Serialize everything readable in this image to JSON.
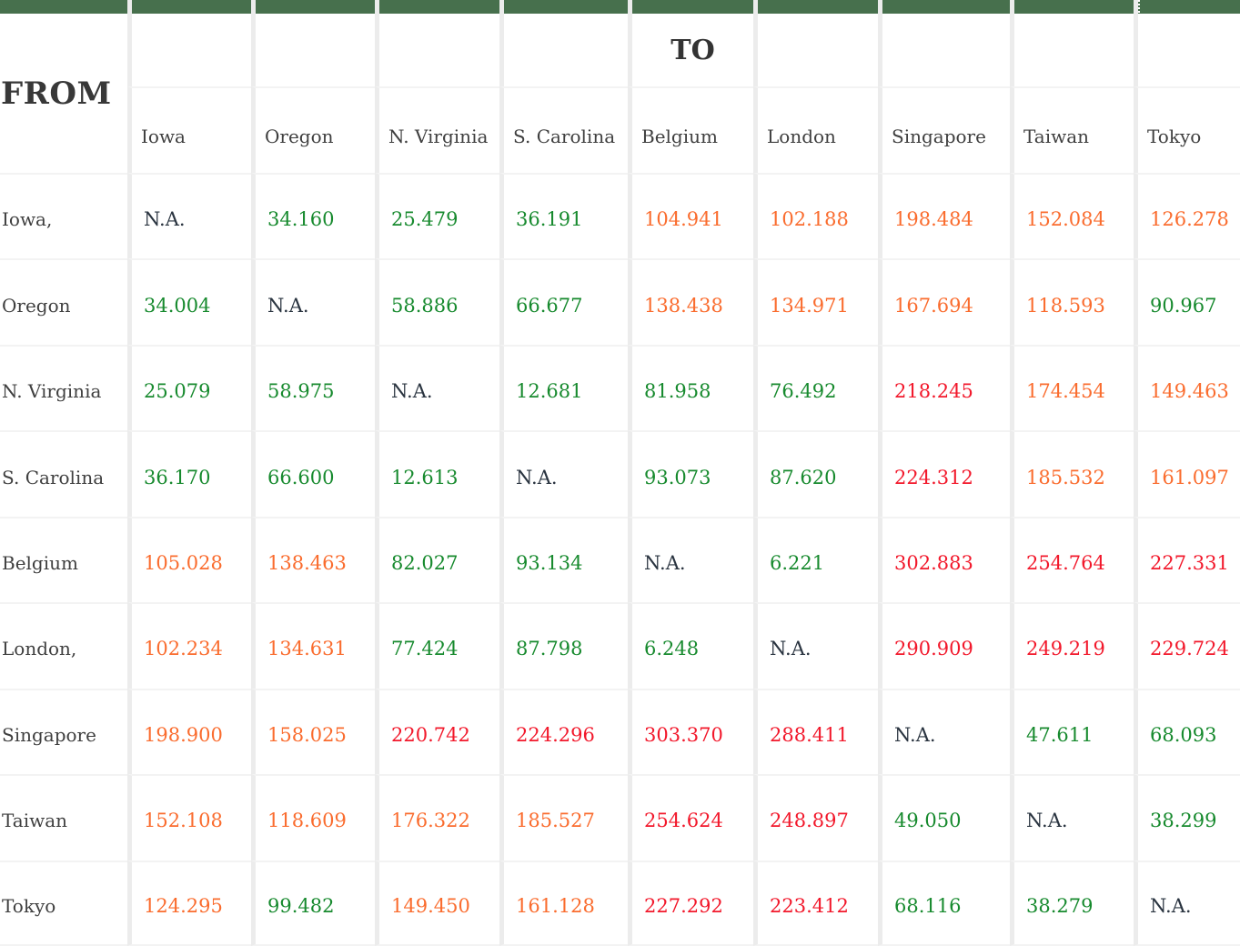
{
  "table": {
    "from_label": "FROM",
    "to_label": "TO",
    "na_label": "N.A.",
    "columns": [
      "Iowa",
      "Oregon",
      "N. Virginia",
      "S. Carolina",
      "Belgium",
      "London",
      "Singapore",
      "Taiwan",
      "Tokyo"
    ],
    "rows": [
      {
        "label": "Iowa,",
        "values": [
          null,
          "34.160",
          "25.479",
          "36.191",
          "104.941",
          "102.188",
          "198.484",
          "152.084",
          "126.278"
        ]
      },
      {
        "label": "Oregon",
        "values": [
          "34.004",
          null,
          "58.886",
          "66.677",
          "138.438",
          "134.971",
          "167.694",
          "118.593",
          "90.967"
        ]
      },
      {
        "label": "N. Virginia",
        "values": [
          "25.079",
          "58.975",
          null,
          "12.681",
          "81.958",
          "76.492",
          "218.245",
          "174.454",
          "149.463"
        ]
      },
      {
        "label": "S. Carolina",
        "values": [
          "36.170",
          "66.600",
          "12.613",
          null,
          "93.073",
          "87.620",
          "224.312",
          "185.532",
          "161.097"
        ]
      },
      {
        "label": "Belgium",
        "values": [
          "105.028",
          "138.463",
          "82.027",
          "93.134",
          null,
          "6.221",
          "302.883",
          "254.764",
          "227.331"
        ]
      },
      {
        "label": "London,",
        "values": [
          "102.234",
          "134.631",
          "77.424",
          "87.798",
          "6.248",
          null,
          "290.909",
          "249.219",
          "229.724"
        ]
      },
      {
        "label": "Singapore",
        "values": [
          "198.900",
          "158.025",
          "220.742",
          "224.296",
          "303.370",
          "288.411",
          null,
          "47.611",
          "68.093"
        ]
      },
      {
        "label": "Taiwan",
        "values": [
          "152.108",
          "118.609",
          "176.322",
          "185.527",
          "254.624",
          "248.897",
          "49.050",
          null,
          "38.299"
        ]
      },
      {
        "label": "Tokyo",
        "values": [
          "124.295",
          "99.482",
          "149.450",
          "161.128",
          "227.292",
          "223.412",
          "68.116",
          "38.279",
          null
        ]
      }
    ]
  },
  "colors": {
    "header_bar_green": "#47704d",
    "value_low_green": "#178a2e",
    "value_mid_orange": "#fa6c2e",
    "value_high_red": "#f2182b",
    "na_text": "#2a3440",
    "label_text": "#3f3f3f",
    "column_gap": "#ececec",
    "row_line": "#f3f3f3"
  },
  "thresholds": {
    "orange_from": 100,
    "red_from": 200
  },
  "chart_data": {
    "type": "heatmap",
    "x_categories_to": [
      "Iowa",
      "Oregon",
      "N. Virginia",
      "S. Carolina",
      "Belgium",
      "London",
      "Singapore",
      "Taiwan",
      "Tokyo"
    ],
    "y_categories_from": [
      "Iowa",
      "Oregon",
      "N. Virginia",
      "S. Carolina",
      "Belgium",
      "London",
      "Singapore",
      "Taiwan",
      "Tokyo"
    ],
    "matrix": [
      [
        null,
        34.16,
        25.479,
        36.191,
        104.941,
        102.188,
        198.484,
        152.084,
        126.278
      ],
      [
        34.004,
        null,
        58.886,
        66.677,
        138.438,
        134.971,
        167.694,
        118.593,
        90.967
      ],
      [
        25.079,
        58.975,
        null,
        12.681,
        81.958,
        76.492,
        218.245,
        174.454,
        149.463
      ],
      [
        36.17,
        66.6,
        12.613,
        null,
        93.073,
        87.62,
        224.312,
        185.532,
        161.097
      ],
      [
        105.028,
        138.463,
        82.027,
        93.134,
        null,
        6.221,
        302.883,
        254.764,
        227.331
      ],
      [
        102.234,
        134.631,
        77.424,
        87.798,
        6.248,
        null,
        290.909,
        249.219,
        229.724
      ],
      [
        198.9,
        158.025,
        220.742,
        224.296,
        303.37,
        288.411,
        null,
        47.611,
        68.093
      ],
      [
        152.108,
        118.609,
        176.322,
        185.527,
        254.624,
        248.897,
        49.05,
        null,
        38.299
      ],
      [
        124.295,
        99.482,
        149.45,
        161.128,
        227.292,
        223.412,
        68.116,
        38.279,
        null
      ]
    ],
    "color_rule": "green < 100, orange 100-200, red >= 200, N.A. on diagonal",
    "legend_position": "none",
    "grid": true
  }
}
